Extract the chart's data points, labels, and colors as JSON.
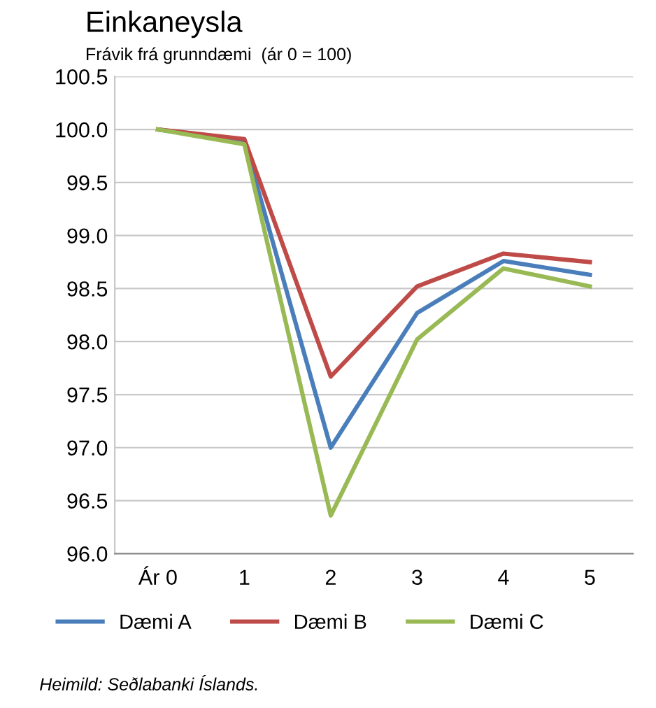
{
  "chart_data": {
    "type": "line",
    "title": "Einkaneysla",
    "subtitle": "Frávik frá grunndæmi  (ár 0 = 100)",
    "categories": [
      "Ár 0",
      "1",
      "2",
      "3",
      "4",
      "5"
    ],
    "series": [
      {
        "name": "Dæmi A",
        "color": "#4a7ebb",
        "values": [
          100.0,
          99.89,
          97.0,
          98.27,
          98.76,
          98.63
        ]
      },
      {
        "name": "Dæmi B",
        "color": "#be4b48",
        "values": [
          100.0,
          99.91,
          97.67,
          98.52,
          98.83,
          98.75
        ]
      },
      {
        "name": "Dæmi C",
        "color": "#98b954",
        "values": [
          100.0,
          99.86,
          96.36,
          98.02,
          98.69,
          98.52
        ]
      }
    ],
    "ylim": [
      96.0,
      100.5
    ],
    "yticks": [
      {
        "value": 96.0,
        "label": "96.0"
      },
      {
        "value": 96.5,
        "label": "96.5"
      },
      {
        "value": 97.0,
        "label": "97.0"
      },
      {
        "value": 97.5,
        "label": "97.5"
      },
      {
        "value": 98.0,
        "label": "98.0"
      },
      {
        "value": 98.5,
        "label": "98.5"
      },
      {
        "value": 99.0,
        "label": "99.0"
      },
      {
        "value": 99.5,
        "label": "99.5"
      },
      {
        "value": 100.0,
        "label": "100.0"
      },
      {
        "value": 100.5,
        "label": "100.5"
      }
    ],
    "grid": "y",
    "legend": "bottom",
    "marker": "none",
    "line_style": "solid",
    "annotations": [
      "Heimild: Seðlabanki Íslands."
    ]
  }
}
